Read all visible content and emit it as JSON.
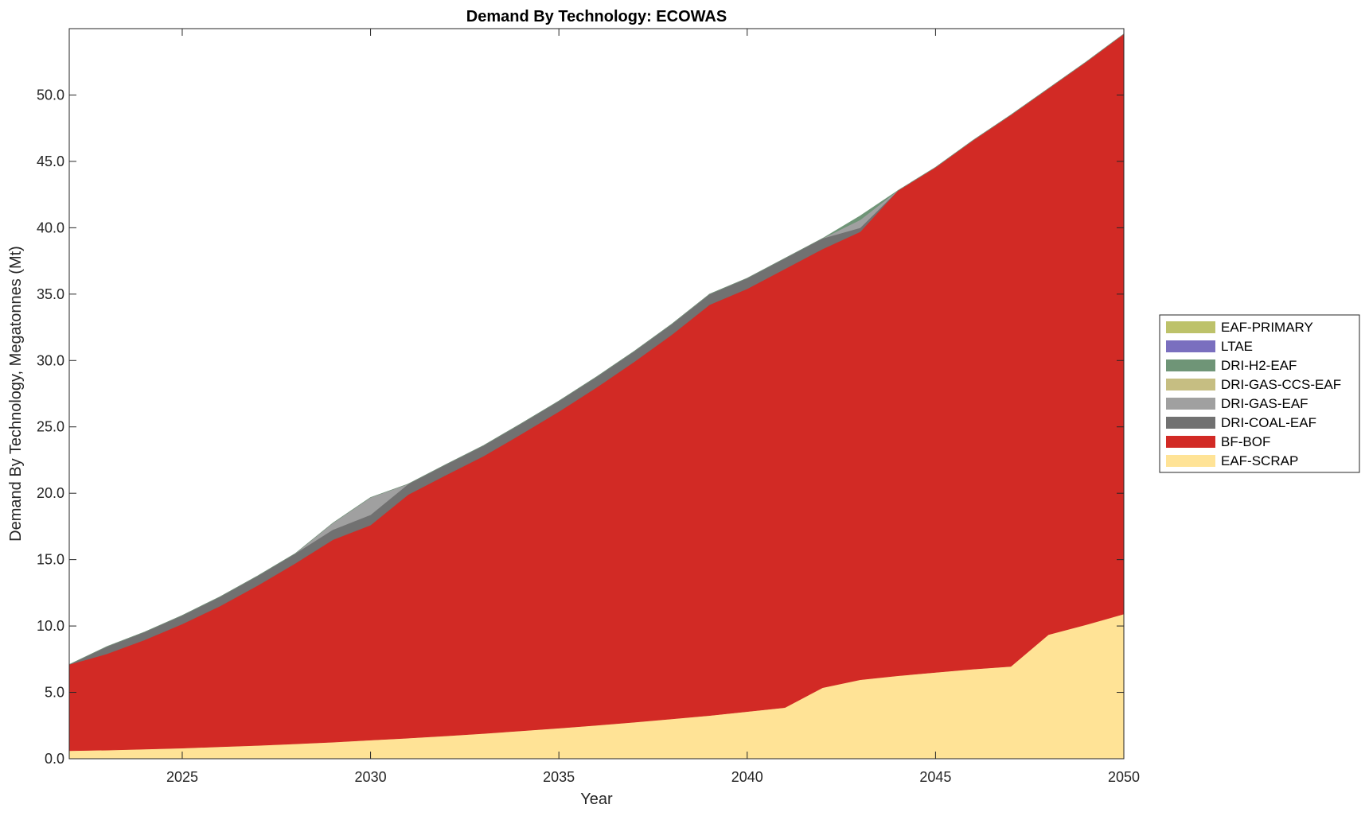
{
  "chart_data": {
    "type": "area",
    "stacked": true,
    "title": "Demand By Technology: ECOWAS",
    "xlabel": "Year",
    "ylabel": "Demand By Technology, Megatonnes (Mt)",
    "xlim": [
      2022,
      2050
    ],
    "ylim": [
      0,
      55
    ],
    "x_ticks": [
      2025,
      2030,
      2035,
      2040,
      2045,
      2050
    ],
    "x_tick_labels": [
      "2025",
      "2030",
      "2035",
      "2040",
      "2045",
      "2050"
    ],
    "y_ticks": [
      0,
      5,
      10,
      15,
      20,
      25,
      30,
      35,
      40,
      45,
      50
    ],
    "y_tick_labels": [
      "0.0",
      "5.0",
      "10.0",
      "15.0",
      "20.0",
      "25.0",
      "30.0",
      "35.0",
      "40.0",
      "45.0",
      "50.0"
    ],
    "grid": false,
    "legend_position": "right",
    "legend_order": [
      "EAF-PRIMARY",
      "LTAE",
      "DRI-H2-EAF",
      "DRI-GAS-CCS-EAF",
      "DRI-GAS-EAF",
      "DRI-COAL-EAF",
      "BF-BOF",
      "EAF-SCRAP"
    ],
    "x": [
      2022,
      2023,
      2024,
      2025,
      2026,
      2027,
      2028,
      2029,
      2030,
      2031,
      2032,
      2033,
      2034,
      2035,
      2036,
      2037,
      2038,
      2039,
      2040,
      2041,
      2042,
      2043,
      2044,
      2045,
      2046,
      2047,
      2048,
      2049,
      2050
    ],
    "series": [
      {
        "name": "EAF-SCRAP",
        "color": "#FFE396",
        "values": [
          0.6,
          0.65,
          0.72,
          0.8,
          0.9,
          1.0,
          1.12,
          1.25,
          1.4,
          1.55,
          1.72,
          1.9,
          2.1,
          2.3,
          2.52,
          2.75,
          3.0,
          3.25,
          3.55,
          3.85,
          5.35,
          5.95,
          6.25,
          6.5,
          6.75,
          6.95,
          9.35,
          10.1,
          10.9
        ]
      },
      {
        "name": "BF-BOF",
        "color": "#D22A25",
        "values": [
          6.5,
          7.25,
          8.23,
          9.35,
          10.6,
          12.05,
          13.6,
          15.25,
          16.2,
          18.35,
          19.65,
          20.9,
          22.35,
          23.85,
          25.45,
          27.15,
          28.95,
          30.95,
          31.85,
          33.05,
          33.05,
          33.75,
          36.55,
          38.05,
          39.85,
          41.55,
          41.15,
          42.4,
          43.7
        ]
      },
      {
        "name": "DRI-COAL-EAF",
        "color": "#717171",
        "values": [
          0.0,
          0.55,
          0.6,
          0.65,
          0.7,
          0.72,
          0.74,
          0.76,
          0.78,
          0.8,
          0.8,
          0.8,
          0.8,
          0.8,
          0.8,
          0.8,
          0.8,
          0.8,
          0.8,
          0.8,
          0.8,
          0.3,
          0.0,
          0.0,
          0.0,
          0.0,
          0.0,
          0.0,
          0.0
        ]
      },
      {
        "name": "DRI-GAS-EAF",
        "color": "#A0A0A0",
        "values": [
          0.0,
          0.0,
          0.0,
          0.0,
          0.0,
          0.0,
          0.0,
          0.5,
          1.3,
          0.0,
          0.0,
          0.0,
          0.0,
          0.0,
          0.0,
          0.0,
          0.0,
          0.0,
          0.0,
          0.0,
          0.0,
          0.6,
          0.0,
          0.0,
          0.0,
          0.0,
          0.0,
          0.0,
          0.0
        ]
      },
      {
        "name": "DRI-GAS-CCS-EAF",
        "color": "#C6BE82",
        "values": [
          0,
          0,
          0,
          0,
          0,
          0,
          0,
          0,
          0,
          0,
          0,
          0,
          0,
          0,
          0,
          0,
          0,
          0,
          0,
          0,
          0,
          0,
          0,
          0,
          0,
          0,
          0,
          0,
          0
        ]
      },
      {
        "name": "DRI-H2-EAF",
        "color": "#6F9577",
        "values": [
          0,
          0,
          0,
          0,
          0,
          0,
          0,
          0,
          0,
          0,
          0,
          0,
          0,
          0,
          0,
          0,
          0,
          0,
          0,
          0,
          0,
          0.3,
          0,
          0,
          0,
          0,
          0,
          0,
          0
        ]
      },
      {
        "name": "LTAE",
        "color": "#7A6FBF",
        "values": [
          0,
          0,
          0,
          0,
          0,
          0,
          0,
          0,
          0,
          0,
          0,
          0,
          0,
          0,
          0,
          0,
          0,
          0,
          0,
          0,
          0,
          0,
          0,
          0,
          0,
          0,
          0,
          0,
          0
        ]
      },
      {
        "name": "EAF-PRIMARY",
        "color": "#BDC26A",
        "values": [
          0,
          0,
          0,
          0,
          0,
          0,
          0,
          0,
          0,
          0,
          0,
          0,
          0,
          0,
          0,
          0,
          0,
          0,
          0,
          0,
          0,
          0,
          0,
          0,
          0,
          0,
          0,
          0,
          0
        ]
      }
    ]
  }
}
